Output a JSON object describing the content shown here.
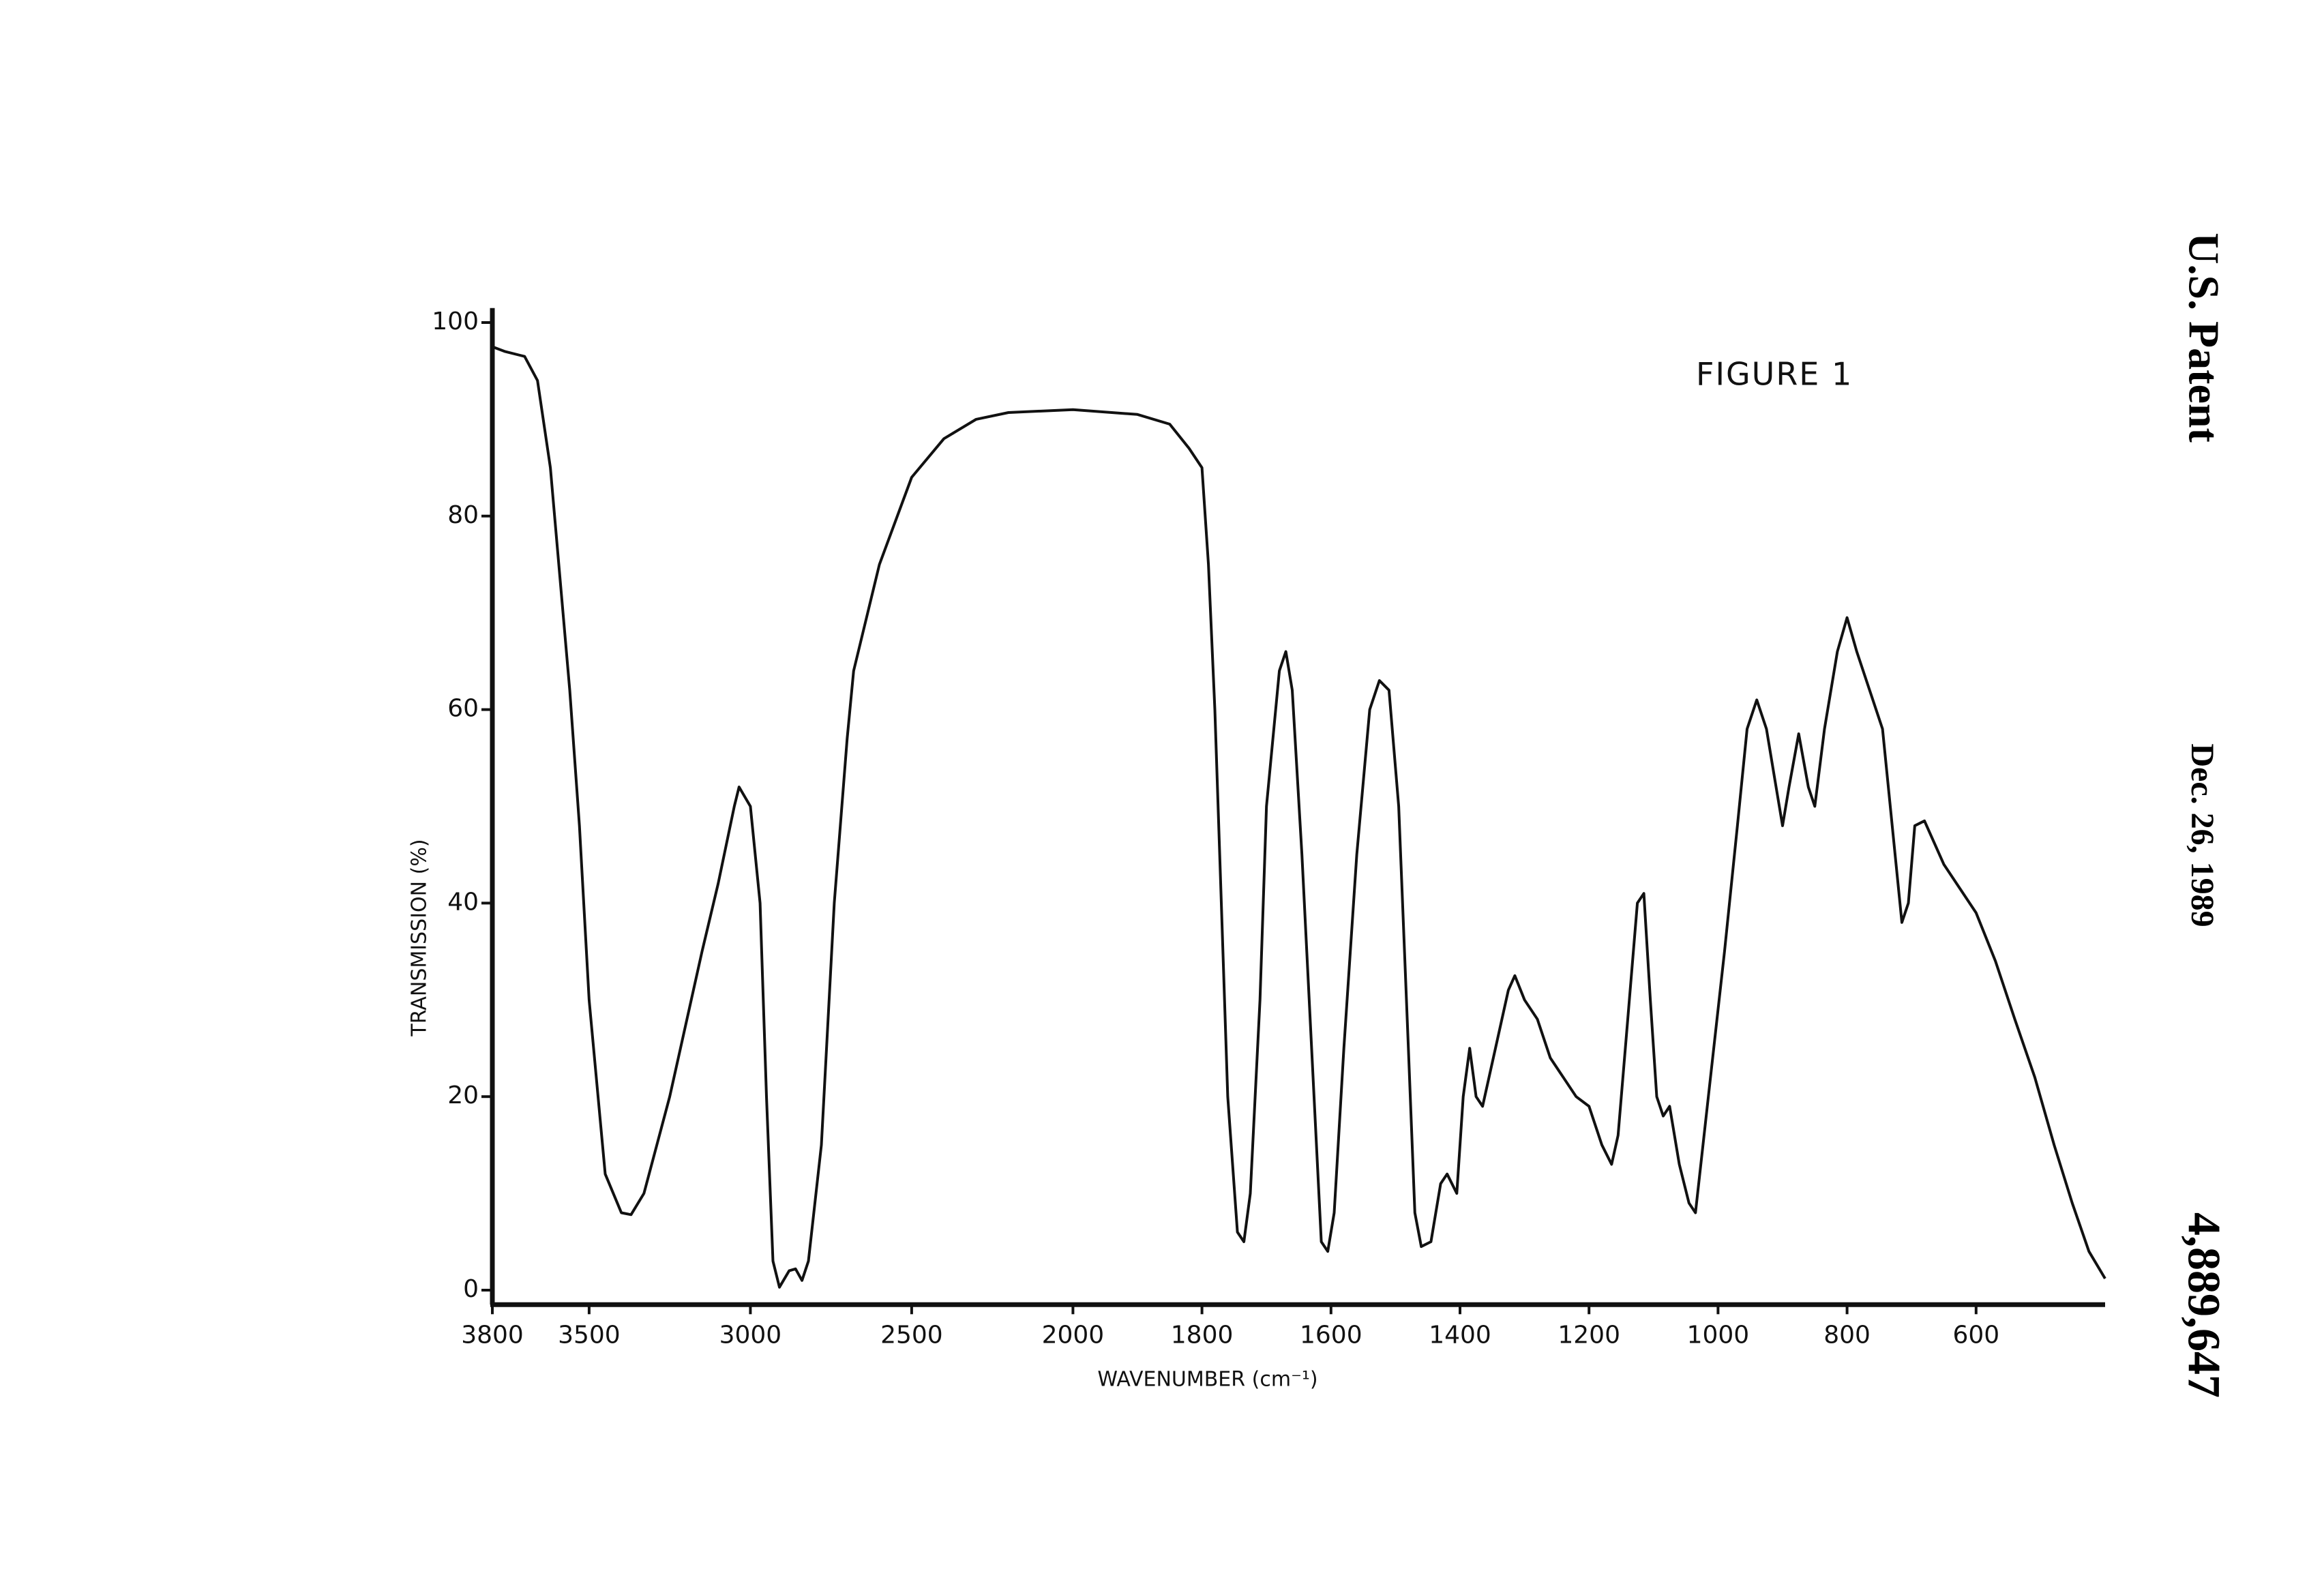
{
  "chart_data": {
    "type": "line",
    "annotation": "FIGURE 1",
    "x_label": "WAVENUMBER (cm⁻¹)",
    "y_label": "TRANSMISSION (%)",
    "color": "#111111",
    "x_scale_change": {
      "at": 2000,
      "ratio": 2
    },
    "xlim": [
      3800,
      400
    ],
    "xticks": [
      3800,
      3500,
      3000,
      2500,
      2000,
      1800,
      1600,
      1400,
      1200,
      1000,
      800,
      600
    ],
    "ylim": [
      -1.5,
      101.5
    ],
    "yticks": [
      0,
      20,
      40,
      60,
      80,
      100
    ],
    "x": [
      3800,
      3760,
      3700,
      3660,
      3620,
      3560,
      3530,
      3500,
      3450,
      3400,
      3370,
      3330,
      3250,
      3150,
      3100,
      3050,
      3035,
      3000,
      2970,
      2950,
      2930,
      2910,
      2880,
      2860,
      2840,
      2820,
      2780,
      2740,
      2700,
      2680,
      2600,
      2500,
      2400,
      2300,
      2200,
      2000,
      1900,
      1850,
      1820,
      1800,
      1790,
      1780,
      1770,
      1760,
      1745,
      1735,
      1725,
      1710,
      1700,
      1680,
      1670,
      1660,
      1645,
      1630,
      1615,
      1605,
      1595,
      1580,
      1560,
      1540,
      1525,
      1510,
      1495,
      1480,
      1470,
      1460,
      1445,
      1430,
      1420,
      1405,
      1395,
      1385,
      1375,
      1365,
      1345,
      1325,
      1315,
      1300,
      1280,
      1260,
      1240,
      1220,
      1200,
      1180,
      1165,
      1155,
      1140,
      1125,
      1115,
      1105,
      1095,
      1085,
      1075,
      1060,
      1045,
      1035,
      1015,
      990,
      970,
      955,
      940,
      925,
      910,
      900,
      890,
      875,
      860,
      850,
      835,
      815,
      800,
      785,
      765,
      745,
      730,
      715,
      705,
      695,
      680,
      650,
      600,
      570,
      540,
      509,
      479,
      451,
      425,
      400
    ],
    "values": [
      97.5,
      97,
      96.5,
      94,
      85,
      62,
      48,
      30,
      12,
      8,
      7.8,
      10,
      20,
      35,
      42,
      50,
      52,
      50,
      40,
      20,
      3,
      0.3,
      2,
      2.2,
      1,
      3,
      15,
      40,
      57,
      64,
      75,
      84,
      88,
      90,
      90.7,
      91,
      90.5,
      89.5,
      87,
      85,
      75,
      60,
      40,
      20,
      6,
      5,
      10,
      30,
      50,
      64,
      66,
      62,
      45,
      25,
      5,
      4,
      8,
      25,
      45,
      60,
      63,
      62,
      50,
      25,
      8,
      4.5,
      5,
      11,
      12,
      10,
      20,
      25,
      20,
      19,
      25,
      31,
      32.5,
      30,
      28,
      24,
      22,
      20,
      19,
      15,
      13,
      16,
      28,
      40,
      41,
      30,
      20,
      18,
      19,
      13,
      9,
      8,
      20,
      35,
      48,
      58,
      61,
      58,
      52,
      48,
      52,
      57.5,
      52,
      50,
      58,
      66,
      69.5,
      66,
      62,
      58,
      48,
      38,
      40,
      48,
      48.5,
      44,
      39,
      34,
      28,
      22,
      15,
      9,
      4,
      1.2
    ]
  },
  "margin": {
    "header": "U.S. Patent",
    "date": "Dec. 26, 1989",
    "patent_number": "4,889,647"
  }
}
